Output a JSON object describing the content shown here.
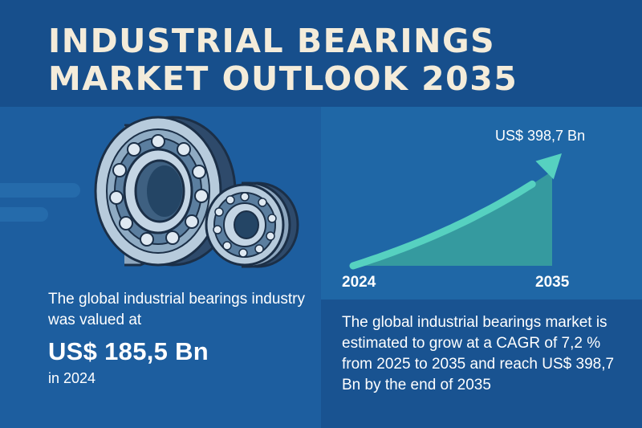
{
  "title": "INDUSTRIAL BEARINGS\nMARKET OUTLOOK 2035",
  "icons": [
    "large-ball-bearing-icon",
    "small-ball-bearing-icon",
    "growth-arrow-icon"
  ],
  "left": {
    "description": "The global industrial bearings industry was valued at",
    "value": "US$ 185,5 Bn",
    "year": "in 2024"
  },
  "right": {
    "description": "The global industrial bearings market is estimated to grow at a CAGR of 7,2 % from 2025 to 2035 and reach US$ 398,7 Bn by the end of 2035"
  },
  "chart_data": {
    "type": "area",
    "x_tick_labels": [
      "2024",
      "2035"
    ],
    "end_label": "US$ 398,7 Bn",
    "x": [
      2024,
      2035
    ],
    "values": [
      185.5,
      398.7
    ]
  },
  "colors": {
    "background": "#1b5a98",
    "title": "#f4ecda",
    "area": "#3aa39e",
    "arrow": "#56d1c0"
  }
}
